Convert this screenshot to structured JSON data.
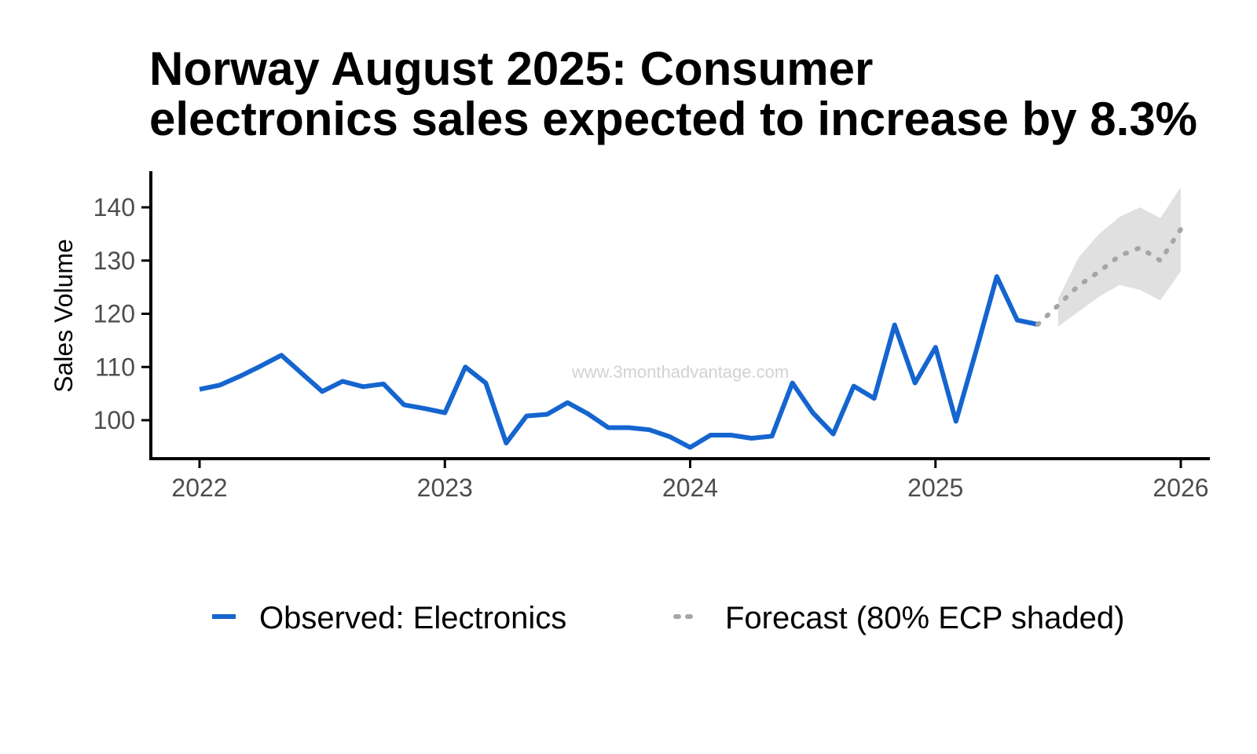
{
  "title_lines": [
    "Norway August 2025: Consumer",
    "electronics sales expected to increase by 8.3%"
  ],
  "watermark": "www.3monthadvantage.com",
  "colors": {
    "observed": "#1565cf",
    "forecast": "#a6a6a6",
    "band": "#e0e0e0",
    "axis": "#000000"
  },
  "chart_data": {
    "type": "line",
    "title": "Norway August 2025: Consumer electronics sales expected to increase by 8.3%",
    "xlabel": "",
    "ylabel": "Sales Volume",
    "x_ticks": [
      "2022",
      "2023",
      "2024",
      "2025",
      "2026"
    ],
    "y_ticks": [
      100,
      110,
      120,
      130,
      140
    ],
    "xlim": [
      "2021-10",
      "2026-02"
    ],
    "ylim": [
      92.5,
      146
    ],
    "grid": false,
    "legend_position": "bottom",
    "series": [
      {
        "name": "Observed: Electronics",
        "style": "solid",
        "points": [
          [
            "2022-01",
            105.8
          ],
          [
            "2022-02",
            106.6
          ],
          [
            "2022-03",
            108.3
          ],
          [
            "2022-04",
            110.2
          ],
          [
            "2022-05",
            112.2
          ],
          [
            "2022-06",
            108.8
          ],
          [
            "2022-07",
            105.4
          ],
          [
            "2022-08",
            107.3
          ],
          [
            "2022-09",
            106.3
          ],
          [
            "2022-10",
            106.8
          ],
          [
            "2022-11",
            102.9
          ],
          [
            "2022-12",
            102.2
          ],
          [
            "2023-01",
            101.4
          ],
          [
            "2023-02",
            110.0
          ],
          [
            "2023-03",
            107.0
          ],
          [
            "2023-04",
            95.7
          ],
          [
            "2023-05",
            100.8
          ],
          [
            "2023-06",
            101.1
          ],
          [
            "2023-07",
            103.3
          ],
          [
            "2023-08",
            101.2
          ],
          [
            "2023-09",
            98.6
          ],
          [
            "2023-10",
            98.6
          ],
          [
            "2023-11",
            98.2
          ],
          [
            "2023-12",
            96.9
          ],
          [
            "2024-01",
            94.9
          ],
          [
            "2024-02",
            97.2
          ],
          [
            "2024-03",
            97.2
          ],
          [
            "2024-04",
            96.6
          ],
          [
            "2024-05",
            97.0
          ],
          [
            "2024-06",
            107.0
          ],
          [
            "2024-07",
            101.4
          ],
          [
            "2024-08",
            97.4
          ],
          [
            "2024-09",
            106.4
          ],
          [
            "2024-10",
            104.1
          ],
          [
            "2024-11",
            117.9
          ],
          [
            "2024-12",
            107.0
          ],
          [
            "2025-01",
            113.7
          ],
          [
            "2025-02",
            99.8
          ],
          [
            "2025-03",
            113.2
          ],
          [
            "2025-04",
            127.0
          ],
          [
            "2025-05",
            118.8
          ],
          [
            "2025-06",
            118.0
          ]
        ]
      },
      {
        "name": "Forecast (80% ECP shaded)",
        "style": "dotted",
        "points": [
          [
            "2025-06",
            118.0
          ],
          [
            "2025-07",
            121.6
          ],
          [
            "2025-08",
            125.3
          ],
          [
            "2025-09",
            127.9
          ],
          [
            "2025-10",
            130.9
          ],
          [
            "2025-11",
            132.4
          ],
          [
            "2025-12",
            130.0
          ],
          [
            "2026-01",
            135.9
          ]
        ],
        "band_80": [
          [
            "2025-07",
            117.6,
            122.8
          ],
          [
            "2025-08",
            120.4,
            130.6
          ],
          [
            "2025-09",
            123.2,
            135.0
          ],
          [
            "2025-10",
            125.4,
            138.2
          ],
          [
            "2025-11",
            124.5,
            140.0
          ],
          [
            "2025-12",
            122.5,
            138.0
          ],
          [
            "2026-01",
            128.0,
            143.8
          ]
        ]
      }
    ]
  }
}
